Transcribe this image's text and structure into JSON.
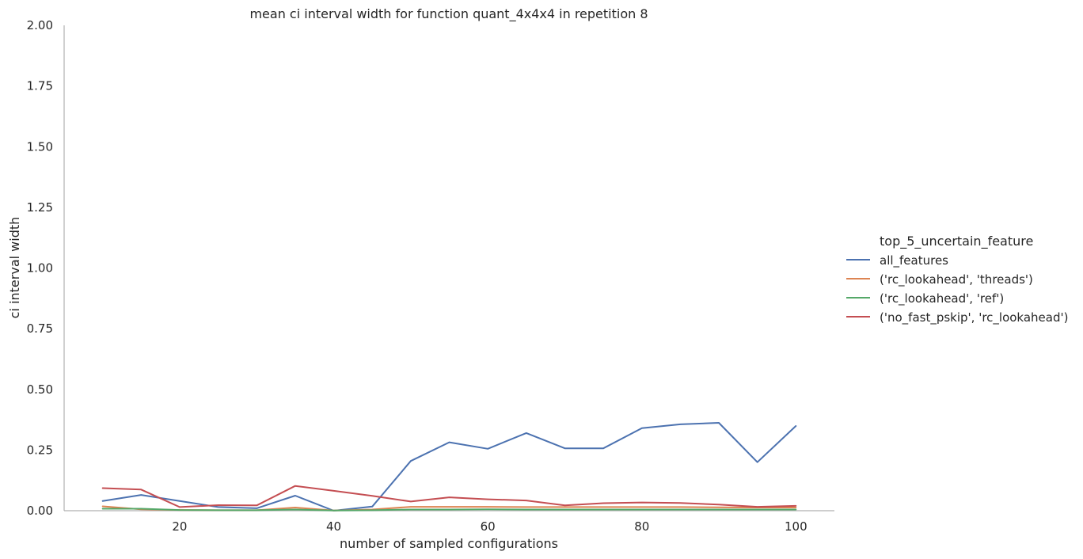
{
  "chart_data": {
    "type": "line",
    "title": "mean ci interval width for function quant_4x4x4 in repetition 8",
    "xlabel": "number of sampled configurations",
    "ylabel": "ci interval width",
    "xlim": [
      5,
      105
    ],
    "ylim": [
      0,
      2.0
    ],
    "xticks": [
      20,
      40,
      60,
      80,
      100
    ],
    "yticks": [
      "0.00",
      "0.25",
      "0.50",
      "0.75",
      "1.00",
      "1.25",
      "1.50",
      "1.75",
      "2.00"
    ],
    "grid": false,
    "legend": {
      "title": "top_5_uncertain_feature",
      "placement": "right"
    },
    "x": [
      10,
      15,
      20,
      25,
      30,
      35,
      40,
      45,
      50,
      55,
      60,
      65,
      70,
      75,
      80,
      85,
      90,
      95,
      100
    ],
    "series": [
      {
        "name": "all_features",
        "color": "#4c72b0",
        "values": [
          0.04,
          0.065,
          0.04,
          0.015,
          0.01,
          0.062,
          0.0,
          0.017,
          0.205,
          0.282,
          0.255,
          0.32,
          0.257,
          0.257,
          0.34,
          0.356,
          0.362,
          0.2,
          0.349
        ]
      },
      {
        "name": "('rc_lookahead', 'threads')",
        "color": "#dd8452",
        "values": [
          0.018,
          0.006,
          0.003,
          0.002,
          0.002,
          0.013,
          0.001,
          0.005,
          0.016,
          0.016,
          0.016,
          0.015,
          0.015,
          0.015,
          0.015,
          0.015,
          0.014,
          0.013,
          0.013
        ]
      },
      {
        "name": "('rc_lookahead', 'ref')",
        "color": "#55a868",
        "values": [
          0.008,
          0.008,
          0.003,
          0.002,
          0.002,
          0.005,
          0.001,
          0.002,
          0.005,
          0.005,
          0.006,
          0.005,
          0.005,
          0.005,
          0.005,
          0.005,
          0.005,
          0.005,
          0.005
        ]
      },
      {
        "name": "('no_fast_pskip', 'rc_lookahead')",
        "color": "#c44e52",
        "values": [
          0.093,
          0.087,
          0.015,
          0.023,
          0.022,
          0.102,
          0.082,
          0.061,
          0.038,
          0.055,
          0.047,
          0.042,
          0.022,
          0.031,
          0.034,
          0.032,
          0.025,
          0.016,
          0.02
        ]
      }
    ]
  }
}
